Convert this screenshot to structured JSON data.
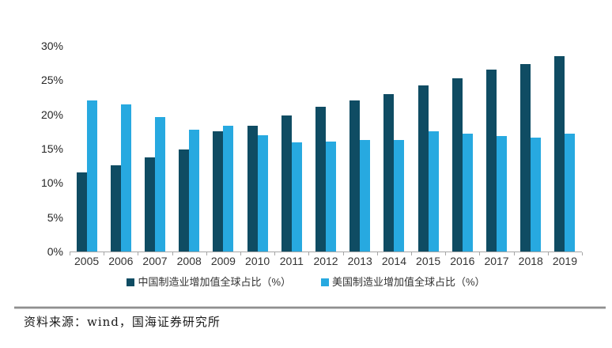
{
  "chart_data": {
    "type": "bar",
    "title": "",
    "xlabel": "",
    "ylabel": "",
    "ylim": [
      0,
      30
    ],
    "ytick_step": 5,
    "yticks": [
      "30%",
      "25%",
      "20%",
      "15%",
      "10%",
      "5%",
      "0%"
    ],
    "grid": false,
    "legend_position": "bottom",
    "categories": [
      "2005",
      "2006",
      "2007",
      "2008",
      "2009",
      "2010",
      "2011",
      "2012",
      "2013",
      "2014",
      "2015",
      "2016",
      "2017",
      "2018",
      "2019"
    ],
    "series": [
      {
        "name": "中国制造业增加值全球占比（%）",
        "key": "china",
        "color": "#0f4c63",
        "values": [
          11.6,
          12.6,
          13.7,
          14.9,
          17.5,
          18.4,
          19.8,
          21.1,
          22.0,
          23.0,
          24.2,
          25.3,
          26.5,
          27.3,
          28.5
        ]
      },
      {
        "name": "美国制造业增加值全球占比（%）",
        "key": "usa",
        "color": "#27a9e0",
        "values": [
          22.0,
          21.5,
          19.6,
          17.8,
          18.4,
          17.0,
          15.9,
          16.1,
          16.3,
          16.3,
          17.6,
          17.2,
          16.8,
          16.6,
          17.2
        ]
      }
    ]
  },
  "footer": {
    "source_text": "资料来源：wind，国海证券研究所"
  },
  "colors": {
    "axis": "#a6a6a6",
    "text": "#333333",
    "rule": "#8f8f8f"
  }
}
